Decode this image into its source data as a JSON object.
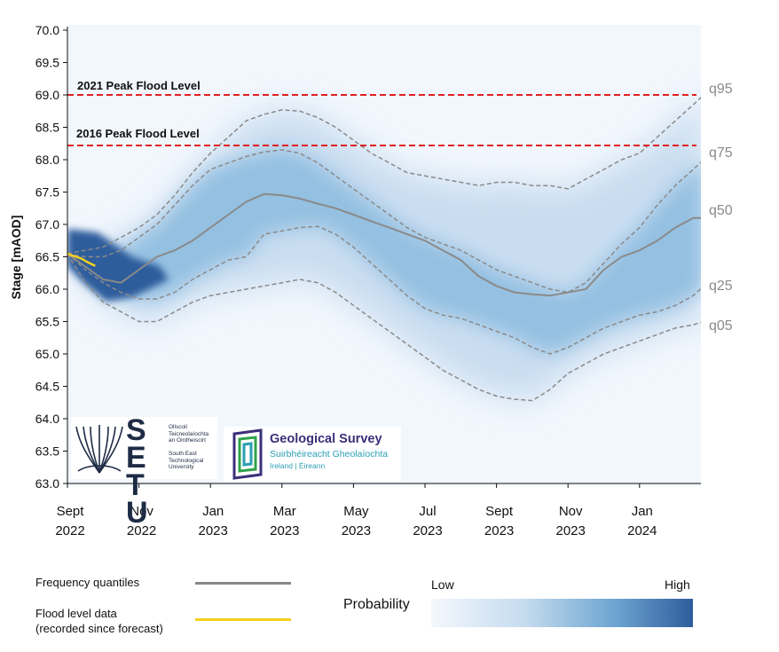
{
  "chart_data": {
    "type": "area",
    "ylabel": "Stage [mAOD]",
    "ylim": [
      63.0,
      70.0
    ],
    "y_ticks": [
      "63.0",
      "63.5",
      "64.0",
      "64.5",
      "65.0",
      "65.5",
      "66.0",
      "66.5",
      "67.0",
      "67.5",
      "68.0",
      "68.5",
      "69.0",
      "69.5",
      "70.0"
    ],
    "x_ticks": [
      {
        "line1": "Sept",
        "line2": "2022",
        "month": 0
      },
      {
        "line1": "Nov",
        "line2": "2022",
        "month": 2
      },
      {
        "line1": "Jan",
        "line2": "2023",
        "month": 4
      },
      {
        "line1": "Mar",
        "line2": "2023",
        "month": 6
      },
      {
        "line1": "May",
        "line2": "2023",
        "month": 8
      },
      {
        "line1": "Jul",
        "line2": "2023",
        "month": 10
      },
      {
        "line1": "Sept",
        "line2": "2023",
        "month": 12
      },
      {
        "line1": "Nov",
        "line2": "2023",
        "month": 14
      },
      {
        "line1": "Jan",
        "line2": "2024",
        "month": 16
      }
    ],
    "x_end_month": 17.8,
    "reference_lines": [
      {
        "label": "2021 Peak Flood Level",
        "value": 69.0,
        "color": "#e02020"
      },
      {
        "label": "2016 Peak Flood Level",
        "value": 68.22,
        "color": "#e02020"
      }
    ],
    "series": [
      {
        "name": "q95",
        "style": "dashed",
        "values": [
          [
            0,
            66.55
          ],
          [
            0.5,
            66.6
          ],
          [
            1,
            66.65
          ],
          [
            1.5,
            66.8
          ],
          [
            2,
            66.95
          ],
          [
            2.5,
            67.15
          ],
          [
            3,
            67.45
          ],
          [
            3.5,
            67.8
          ],
          [
            4,
            68.1
          ],
          [
            4.5,
            68.35
          ],
          [
            5,
            68.6
          ],
          [
            5.5,
            68.7
          ],
          [
            6,
            68.77
          ],
          [
            6.5,
            68.75
          ],
          [
            7,
            68.65
          ],
          [
            7.5,
            68.5
          ],
          [
            8,
            68.3
          ],
          [
            8.5,
            68.1
          ],
          [
            9,
            67.95
          ],
          [
            9.5,
            67.8
          ],
          [
            10,
            67.75
          ],
          [
            10.5,
            67.7
          ],
          [
            11,
            67.65
          ],
          [
            11.5,
            67.6
          ],
          [
            12,
            67.65
          ],
          [
            12.5,
            67.65
          ],
          [
            13,
            67.6
          ],
          [
            13.5,
            67.6
          ],
          [
            14,
            67.55
          ],
          [
            14.5,
            67.7
          ],
          [
            15,
            67.85
          ],
          [
            15.5,
            68.0
          ],
          [
            16,
            68.1
          ],
          [
            16.5,
            68.35
          ],
          [
            17,
            68.6
          ],
          [
            17.5,
            68.85
          ],
          [
            17.8,
            69.0
          ]
        ]
      },
      {
        "name": "q75",
        "style": "dashed",
        "values": [
          [
            0,
            66.55
          ],
          [
            0.5,
            66.5
          ],
          [
            1,
            66.5
          ],
          [
            1.5,
            66.6
          ],
          [
            2,
            66.8
          ],
          [
            2.5,
            67.0
          ],
          [
            3,
            67.3
          ],
          [
            3.5,
            67.6
          ],
          [
            4,
            67.85
          ],
          [
            4.5,
            67.95
          ],
          [
            5,
            68.05
          ],
          [
            5.5,
            68.12
          ],
          [
            6,
            68.15
          ],
          [
            6.5,
            68.1
          ],
          [
            7,
            67.95
          ],
          [
            7.5,
            67.75
          ],
          [
            8,
            67.55
          ],
          [
            8.5,
            67.35
          ],
          [
            9,
            67.15
          ],
          [
            9.5,
            66.95
          ],
          [
            10,
            66.8
          ],
          [
            10.5,
            66.7
          ],
          [
            11,
            66.6
          ],
          [
            11.5,
            66.45
          ],
          [
            12,
            66.3
          ],
          [
            12.5,
            66.2
          ],
          [
            13,
            66.1
          ],
          [
            13.5,
            66.0
          ],
          [
            14,
            65.95
          ],
          [
            14.5,
            66.1
          ],
          [
            15,
            66.4
          ],
          [
            15.5,
            66.7
          ],
          [
            16,
            66.95
          ],
          [
            16.5,
            67.3
          ],
          [
            17,
            67.6
          ],
          [
            17.5,
            67.85
          ],
          [
            17.8,
            68.0
          ]
        ]
      },
      {
        "name": "q50",
        "style": "solid",
        "values": [
          [
            0,
            66.55
          ],
          [
            0.5,
            66.35
          ],
          [
            1,
            66.15
          ],
          [
            1.5,
            66.1
          ],
          [
            2,
            66.3
          ],
          [
            2.5,
            66.5
          ],
          [
            3,
            66.6
          ],
          [
            3.5,
            66.75
          ],
          [
            4,
            66.95
          ],
          [
            4.5,
            67.15
          ],
          [
            5,
            67.35
          ],
          [
            5.5,
            67.47
          ],
          [
            6,
            67.45
          ],
          [
            6.5,
            67.4
          ],
          [
            7,
            67.32
          ],
          [
            7.5,
            67.25
          ],
          [
            8,
            67.15
          ],
          [
            8.5,
            67.05
          ],
          [
            9,
            66.95
          ],
          [
            9.5,
            66.85
          ],
          [
            10,
            66.75
          ],
          [
            10.5,
            66.6
          ],
          [
            11,
            66.45
          ],
          [
            11.5,
            66.2
          ],
          [
            12,
            66.05
          ],
          [
            12.5,
            65.95
          ],
          [
            13,
            65.92
          ],
          [
            13.5,
            65.9
          ],
          [
            14,
            65.95
          ],
          [
            14.5,
            66.0
          ],
          [
            15,
            66.3
          ],
          [
            15.5,
            66.5
          ],
          [
            16,
            66.6
          ],
          [
            16.5,
            66.75
          ],
          [
            17,
            66.95
          ],
          [
            17.5,
            67.1
          ],
          [
            17.8,
            67.1
          ]
        ]
      },
      {
        "name": "q25",
        "style": "dashed",
        "values": [
          [
            0,
            66.55
          ],
          [
            0.5,
            66.3
          ],
          [
            1,
            66.1
          ],
          [
            1.5,
            65.95
          ],
          [
            2,
            65.85
          ],
          [
            2.5,
            65.85
          ],
          [
            3,
            65.95
          ],
          [
            3.5,
            66.15
          ],
          [
            4,
            66.3
          ],
          [
            4.5,
            66.45
          ],
          [
            5,
            66.5
          ],
          [
            5.5,
            66.85
          ],
          [
            6,
            66.9
          ],
          [
            6.5,
            66.95
          ],
          [
            7,
            66.97
          ],
          [
            7.5,
            66.85
          ],
          [
            8,
            66.65
          ],
          [
            8.5,
            66.4
          ],
          [
            9,
            66.15
          ],
          [
            9.5,
            65.9
          ],
          [
            10,
            65.7
          ],
          [
            10.5,
            65.6
          ],
          [
            11,
            65.55
          ],
          [
            11.5,
            65.45
          ],
          [
            12,
            65.35
          ],
          [
            12.5,
            65.25
          ],
          [
            13,
            65.1
          ],
          [
            13.5,
            65.0
          ],
          [
            14,
            65.1
          ],
          [
            14.5,
            65.25
          ],
          [
            15,
            65.4
          ],
          [
            15.5,
            65.5
          ],
          [
            16,
            65.6
          ],
          [
            16.5,
            65.65
          ],
          [
            17,
            65.75
          ],
          [
            17.5,
            65.9
          ],
          [
            17.8,
            66.05
          ]
        ]
      },
      {
        "name": "q05",
        "style": "dashed",
        "values": [
          [
            0,
            66.55
          ],
          [
            0.5,
            66.1
          ],
          [
            1,
            65.8
          ],
          [
            1.5,
            65.65
          ],
          [
            2,
            65.5
          ],
          [
            2.5,
            65.5
          ],
          [
            3,
            65.65
          ],
          [
            3.5,
            65.8
          ],
          [
            4,
            65.9
          ],
          [
            4.5,
            65.95
          ],
          [
            5,
            66.0
          ],
          [
            5.5,
            66.05
          ],
          [
            6,
            66.1
          ],
          [
            6.5,
            66.15
          ],
          [
            7,
            66.1
          ],
          [
            7.5,
            65.95
          ],
          [
            8,
            65.75
          ],
          [
            8.5,
            65.55
          ],
          [
            9,
            65.35
          ],
          [
            9.5,
            65.15
          ],
          [
            10,
            64.95
          ],
          [
            10.5,
            64.75
          ],
          [
            11,
            64.6
          ],
          [
            11.5,
            64.45
          ],
          [
            12,
            64.35
          ],
          [
            12.5,
            64.3
          ],
          [
            13,
            64.28
          ],
          [
            13.5,
            64.45
          ],
          [
            14,
            64.7
          ],
          [
            14.5,
            64.85
          ],
          [
            15,
            65.0
          ],
          [
            15.5,
            65.1
          ],
          [
            16,
            65.2
          ],
          [
            16.5,
            65.3
          ],
          [
            17,
            65.4
          ],
          [
            17.5,
            65.45
          ],
          [
            17.8,
            65.5
          ]
        ]
      },
      {
        "name": "observed",
        "style": "yellow",
        "values": [
          [
            0,
            66.55
          ],
          [
            0.12,
            66.52
          ],
          [
            0.25,
            66.5
          ],
          [
            0.4,
            66.47
          ],
          [
            0.55,
            66.42
          ],
          [
            0.7,
            66.38
          ],
          [
            0.78,
            66.36
          ]
        ]
      }
    ]
  },
  "labels": {
    "y_axis_title": "Stage [mAOD]",
    "flood_2021": "2021 Peak Flood Level",
    "flood_2016": "2016 Peak Flood Level",
    "quantile_labels": [
      "q95",
      "q75",
      "q50",
      "q25",
      "q05"
    ]
  },
  "logos": {
    "setu": {
      "letters": "SETU",
      "text_ga": [
        "Ollscoil",
        "Teicneolaíochta",
        "an Oirdheiscirt"
      ],
      "text_en": [
        "South East",
        "Technological",
        "University"
      ]
    },
    "gsi": {
      "title": "Geological Survey",
      "subtitle": "Suirbhéireacht Gheolaíochta",
      "sub2": "Ireland | Éireann"
    }
  },
  "legend": {
    "frequency_quantiles": "Frequency quantiles",
    "flood_data_line1": "Flood level data",
    "flood_data_line2": "(recorded since forecast)",
    "probability": "Probability",
    "low": "Low",
    "high": "High",
    "colors": {
      "quantile_line": "#888888",
      "observed_line": "#f2d01e",
      "prob_low": "#f4f8fd",
      "prob_high": "#2e5d9c"
    }
  }
}
